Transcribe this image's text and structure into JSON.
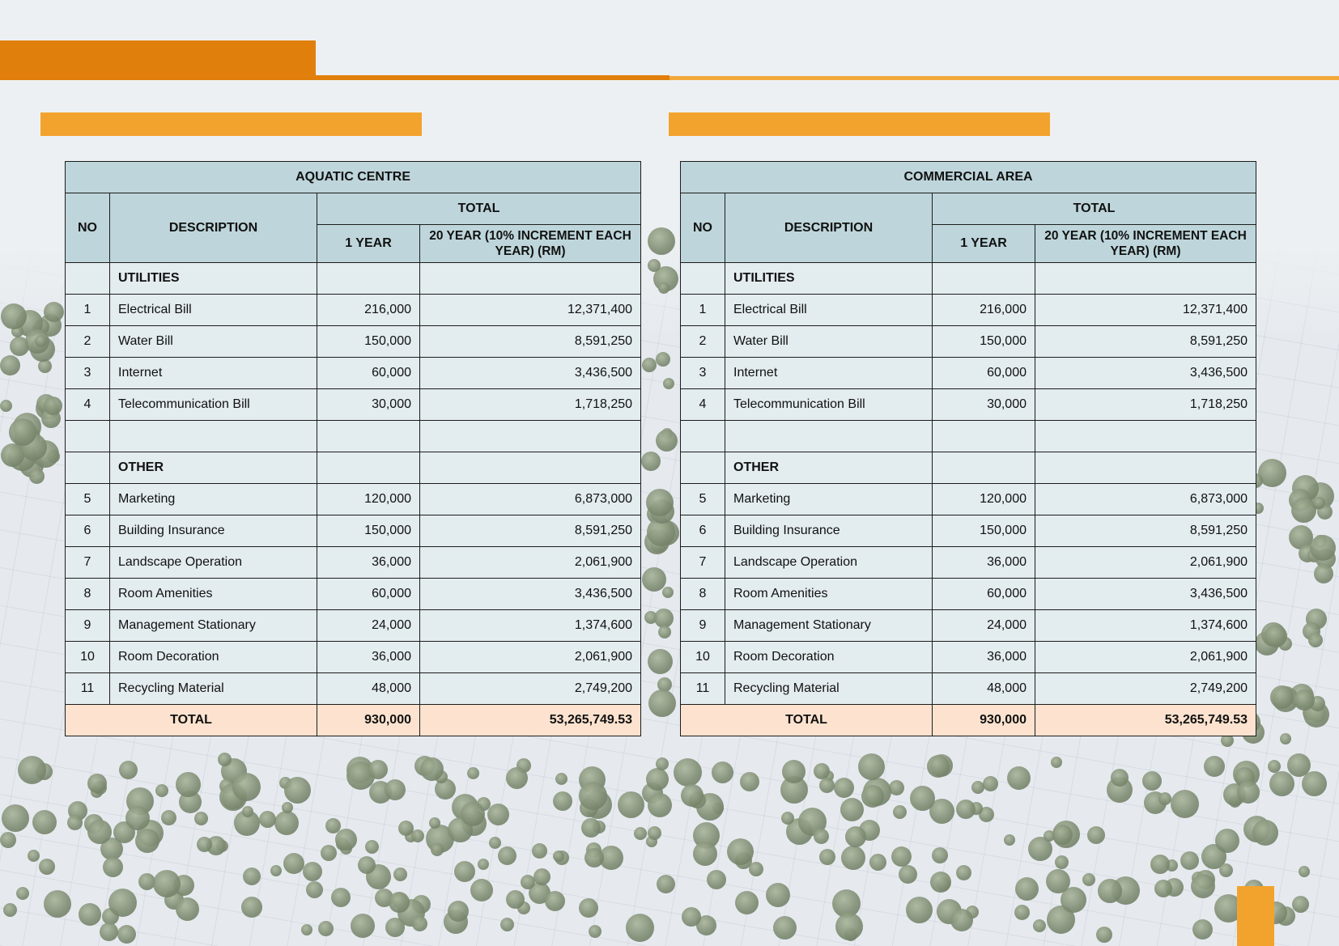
{
  "tables": [
    {
      "title": "AQUATIC CENTRE",
      "header": {
        "no": "NO",
        "description": "DESCRIPTION",
        "total": "TOTAL",
        "year1": "1 YEAR",
        "year20": "20 YEAR (10% INCREMENT EACH YEAR) (RM)"
      },
      "section_utilities": "UTILITIES",
      "utilities": [
        {
          "no": "1",
          "desc": "Electrical Bill",
          "y1": "216,000",
          "y20": "12,371,400"
        },
        {
          "no": "2",
          "desc": "Water Bill",
          "y1": "150,000",
          "y20": "8,591,250"
        },
        {
          "no": "3",
          "desc": "Internet",
          "y1": "60,000",
          "y20": "3,436,500"
        },
        {
          "no": "4",
          "desc": "Telecommunication Bill",
          "y1": "30,000",
          "y20": "1,718,250"
        }
      ],
      "section_other": "OTHER",
      "other": [
        {
          "no": "5",
          "desc": "Marketing",
          "y1": "120,000",
          "y20": "6,873,000"
        },
        {
          "no": "6",
          "desc": "Building Insurance",
          "y1": "150,000",
          "y20": "8,591,250"
        },
        {
          "no": "7",
          "desc": "Landscape Operation",
          "y1": "36,000",
          "y20": "2,061,900"
        },
        {
          "no": "8",
          "desc": "Room Amenities",
          "y1": "60,000",
          "y20": "3,436,500"
        },
        {
          "no": "9",
          "desc": "Management Stationary",
          "y1": "24,000",
          "y20": "1,374,600"
        },
        {
          "no": "10",
          "desc": "Room Decoration",
          "y1": "36,000",
          "y20": "2,061,900"
        },
        {
          "no": "11",
          "desc": "Recycling Material",
          "y1": "48,000",
          "y20": "2,749,200"
        }
      ],
      "total": {
        "label": "TOTAL",
        "y1": "930,000",
        "y20": "53,265,749.53"
      }
    },
    {
      "title": "COMMERCIAL AREA",
      "header": {
        "no": "NO",
        "description": "DESCRIPTION",
        "total": "TOTAL",
        "year1": "1 YEAR",
        "year20": "20 YEAR (10% INCREMENT EACH YEAR) (RM)"
      },
      "section_utilities": "UTILITIES",
      "utilities": [
        {
          "no": "1",
          "desc": "Electrical Bill",
          "y1": "216,000",
          "y20": "12,371,400"
        },
        {
          "no": "2",
          "desc": "Water Bill",
          "y1": "150,000",
          "y20": "8,591,250"
        },
        {
          "no": "3",
          "desc": "Internet",
          "y1": "60,000",
          "y20": "3,436,500"
        },
        {
          "no": "4",
          "desc": "Telecommunication Bill",
          "y1": "30,000",
          "y20": "1,718,250"
        }
      ],
      "section_other": "OTHER",
      "other": [
        {
          "no": "5",
          "desc": "Marketing",
          "y1": "120,000",
          "y20": "6,873,000"
        },
        {
          "no": "6",
          "desc": "Building Insurance",
          "y1": "150,000",
          "y20": "8,591,250"
        },
        {
          "no": "7",
          "desc": "Landscape Operation",
          "y1": "36,000",
          "y20": "2,061,900"
        },
        {
          "no": "8",
          "desc": "Room Amenities",
          "y1": "60,000",
          "y20": "3,436,500"
        },
        {
          "no": "9",
          "desc": "Management Stationary",
          "y1": "24,000",
          "y20": "1,374,600"
        },
        {
          "no": "10",
          "desc": "Room Decoration",
          "y1": "36,000",
          "y20": "2,061,900"
        },
        {
          "no": "11",
          "desc": "Recycling Material",
          "y1": "48,000",
          "y20": "2,749,200"
        }
      ],
      "total": {
        "label": "TOTAL",
        "y1": "930,000",
        "y20": "53,265,749.53"
      }
    }
  ],
  "colors": {
    "header_orange": "#e07f0c",
    "accent_orange": "#f2a32e",
    "table_header_bg": "#bed6db",
    "table_body_bg": "#e3ecef",
    "table_total_bg": "#fde3cf"
  }
}
